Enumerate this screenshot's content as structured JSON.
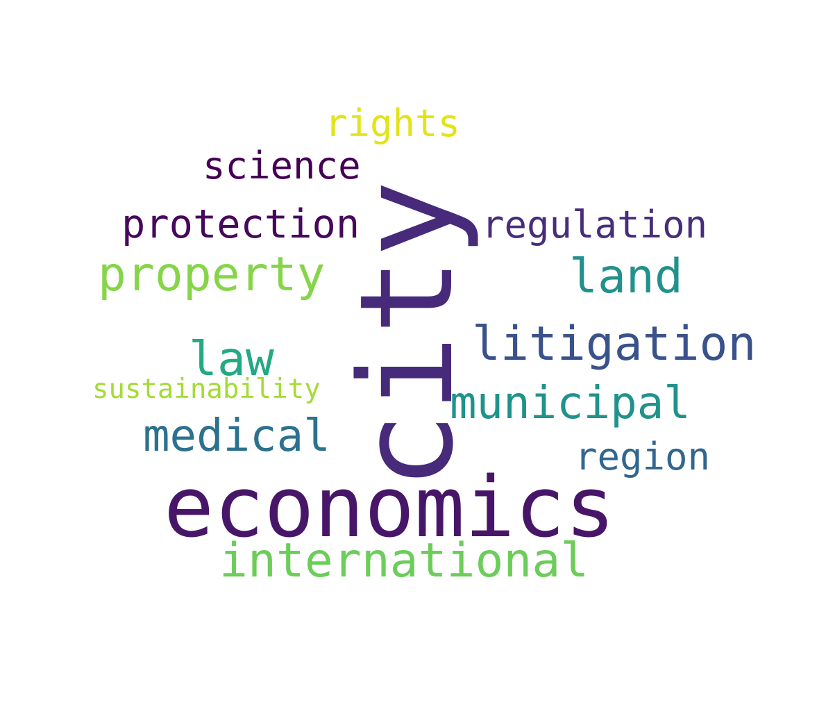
{
  "word_cloud": {
    "words": [
      {
        "id": "city",
        "text": "city",
        "color": "#472a7a"
      },
      {
        "id": "economics",
        "text": "economics",
        "color": "#481668"
      },
      {
        "id": "international",
        "text": "international",
        "color": "#6ccd5a"
      },
      {
        "id": "property",
        "text": "property",
        "color": "#86d549"
      },
      {
        "id": "litigation",
        "text": "litigation",
        "color": "#3a528b"
      },
      {
        "id": "municipal",
        "text": "municipal",
        "color": "#20928c"
      },
      {
        "id": "medical",
        "text": "medical",
        "color": "#2c718e"
      },
      {
        "id": "land",
        "text": "land",
        "color": "#21918c"
      },
      {
        "id": "law",
        "text": "law",
        "color": "#23a983"
      },
      {
        "id": "protection",
        "text": "protection",
        "color": "#46085c"
      },
      {
        "id": "regulation",
        "text": "regulation",
        "color": "#472d7b"
      },
      {
        "id": "science",
        "text": "science",
        "color": "#440154"
      },
      {
        "id": "region",
        "text": "region",
        "color": "#31668e"
      },
      {
        "id": "rights",
        "text": "rights",
        "color": "#e2e418"
      },
      {
        "id": "sustainability",
        "text": "sustainability",
        "color": "#a5db36"
      }
    ]
  }
}
